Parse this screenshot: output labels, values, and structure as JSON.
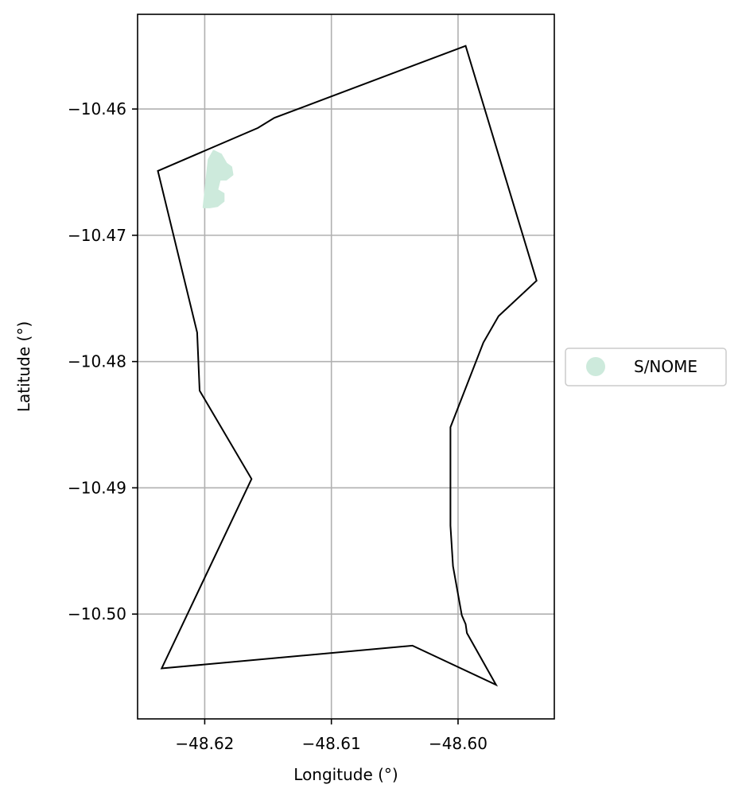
{
  "chart_data": {
    "type": "map",
    "xlabel": "Longitude (°)",
    "ylabel": "Latitude (°)",
    "xlim": [
      -48.6253,
      -48.5924
    ],
    "ylim": [
      -10.5083,
      -10.4525
    ],
    "grid": true,
    "x_ticks": [
      {
        "value": -48.62,
        "label": "−48.62"
      },
      {
        "value": -48.61,
        "label": "−48.61"
      },
      {
        "value": -48.6,
        "label": "−48.60"
      }
    ],
    "y_ticks": [
      {
        "value": -10.46,
        "label": "−10.46"
      },
      {
        "value": -10.47,
        "label": "−10.47"
      },
      {
        "value": -10.48,
        "label": "−10.48"
      },
      {
        "value": -10.49,
        "label": "−10.49"
      },
      {
        "value": -10.5,
        "label": "−10.50"
      }
    ],
    "boundary": {
      "stroke": "#000000",
      "points": [
        [
          -48.6237,
          -10.4649
        ],
        [
          -48.6158,
          -10.4615
        ],
        [
          -48.6145,
          -10.4607
        ],
        [
          -48.5994,
          -10.455
        ],
        [
          -48.5938,
          -10.4736
        ],
        [
          -48.5968,
          -10.4764
        ],
        [
          -48.598,
          -10.4785
        ],
        [
          -48.6006,
          -10.4852
        ],
        [
          -48.6006,
          -10.493
        ],
        [
          -48.6004,
          -10.4962
        ],
        [
          -48.5997,
          -10.5001
        ],
        [
          -48.5994,
          -10.5008
        ],
        [
          -48.5993,
          -10.5015
        ],
        [
          -48.597,
          -10.5056
        ],
        [
          -48.6036,
          -10.5025
        ],
        [
          -48.6234,
          -10.5043
        ],
        [
          -48.6163,
          -10.4893
        ],
        [
          -48.6204,
          -10.4823
        ],
        [
          -48.6206,
          -10.4777
        ]
      ]
    },
    "series": [
      {
        "name": "S/NOME",
        "color": "#cdeadc",
        "features": [
          [
            [
              -48.6201,
              -10.4678
            ],
            [
              -48.6197,
              -10.464
            ],
            [
              -48.6193,
              -10.4633
            ],
            [
              -48.6187,
              -10.4636
            ],
            [
              -48.6183,
              -10.4643
            ],
            [
              -48.6179,
              -10.4646
            ],
            [
              -48.6178,
              -10.4652
            ],
            [
              -48.6183,
              -10.4656
            ],
            [
              -48.6188,
              -10.4656
            ],
            [
              -48.6189,
              -10.466
            ],
            [
              -48.619,
              -10.4664
            ],
            [
              -48.6185,
              -10.4667
            ],
            [
              -48.6185,
              -10.4673
            ],
            [
              -48.619,
              -10.4677
            ],
            [
              -48.6196,
              -10.4678
            ]
          ]
        ]
      }
    ],
    "legend": {
      "placement": "right-center",
      "entries": [
        {
          "label": "S/NOME",
          "color": "#cdeadc"
        }
      ]
    }
  }
}
